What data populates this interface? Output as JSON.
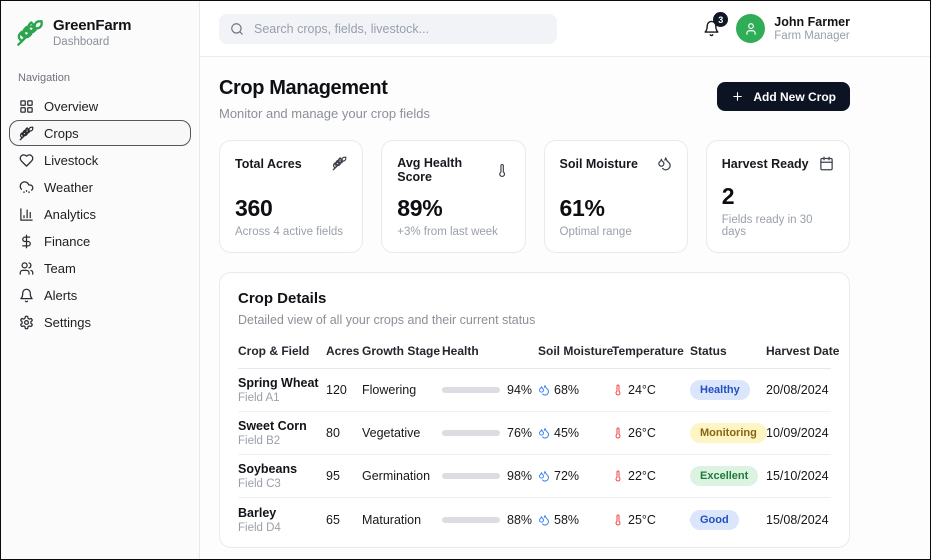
{
  "brand": {
    "name": "GreenFarm",
    "subtitle": "Dashboard",
    "logo_icon": "wheat-icon",
    "logo_color": "#2da44e"
  },
  "sidebar": {
    "section_label": "Navigation",
    "items": [
      {
        "label": "Overview",
        "icon": "grid-icon",
        "active": false
      },
      {
        "label": "Crops",
        "icon": "wheat-icon",
        "active": true
      },
      {
        "label": "Livestock",
        "icon": "heart-icon",
        "active": false
      },
      {
        "label": "Weather",
        "icon": "cloud-rain-icon",
        "active": false
      },
      {
        "label": "Analytics",
        "icon": "bar-chart-icon",
        "active": false
      },
      {
        "label": "Finance",
        "icon": "dollar-icon",
        "active": false
      },
      {
        "label": "Team",
        "icon": "users-icon",
        "active": false
      },
      {
        "label": "Alerts",
        "icon": "bell-icon",
        "active": false
      },
      {
        "label": "Settings",
        "icon": "gear-icon",
        "active": false
      }
    ]
  },
  "topbar": {
    "search_placeholder": "Search crops, fields, livestock...",
    "notifications_count": "3",
    "user": {
      "name": "John Farmer",
      "role": "Farm Manager"
    }
  },
  "page": {
    "title": "Crop Management",
    "subtitle": "Monitor and manage your crop fields",
    "add_button_label": "Add New Crop"
  },
  "stats": [
    {
      "label": "Total Acres",
      "icon": "wheat-icon",
      "value": "360",
      "caption": "Across 4 active fields"
    },
    {
      "label": "Avg Health Score",
      "icon": "thermometer-icon",
      "value": "89%",
      "caption": "+3% from last week"
    },
    {
      "label": "Soil Moisture",
      "icon": "droplets-icon",
      "value": "61%",
      "caption": "Optimal range"
    },
    {
      "label": "Harvest Ready",
      "icon": "calendar-icon",
      "value": "2",
      "caption": "Fields ready in 30 days"
    }
  ],
  "table": {
    "title": "Crop Details",
    "subtitle": "Detailed view of all your crops and their current status",
    "columns": [
      "Crop & Field",
      "Acres",
      "Growth Stage",
      "Health",
      "Soil Moisture",
      "Temperature",
      "Status",
      "Harvest Date"
    ],
    "rows": [
      {
        "crop": "Spring Wheat",
        "field": "Field A1",
        "acres": "120",
        "stage": "Flowering",
        "health_pct": 94,
        "health": "94%",
        "moisture": "68%",
        "temperature": "24°C",
        "status": "Healthy",
        "status_color": "blue",
        "harvest": "20/08/2024"
      },
      {
        "crop": "Sweet Corn",
        "field": "Field B2",
        "acres": "80",
        "stage": "Vegetative",
        "health_pct": 76,
        "health": "76%",
        "moisture": "45%",
        "temperature": "26°C",
        "status": "Monitoring",
        "status_color": "yellow",
        "harvest": "10/09/2024"
      },
      {
        "crop": "Soybeans",
        "field": "Field C3",
        "acres": "95",
        "stage": "Germination",
        "health_pct": 98,
        "health": "98%",
        "moisture": "72%",
        "temperature": "22°C",
        "status": "Excellent",
        "status_color": "green",
        "harvest": "15/10/2024"
      },
      {
        "crop": "Barley",
        "field": "Field D4",
        "acres": "65",
        "stage": "Maturation",
        "health_pct": 88,
        "health": "88%",
        "moisture": "58%",
        "temperature": "25°C",
        "status": "Good",
        "status_color": "blue",
        "harvest": "15/08/2024"
      }
    ]
  },
  "colors": {
    "brand_green": "#2da44e",
    "dark_accent": "#0c1322",
    "health_bar": "#0d0f14",
    "moisture_blue": "#3b82f6",
    "temperature_red": "#ef4444",
    "badge_blue_bg": "#dbe5fb",
    "badge_blue_text": "#2350c0",
    "badge_yellow_bg": "#fdf5c4",
    "badge_yellow_text": "#8a6410",
    "badge_green_bg": "#dcf3e1",
    "badge_green_text": "#1f7a3b"
  }
}
